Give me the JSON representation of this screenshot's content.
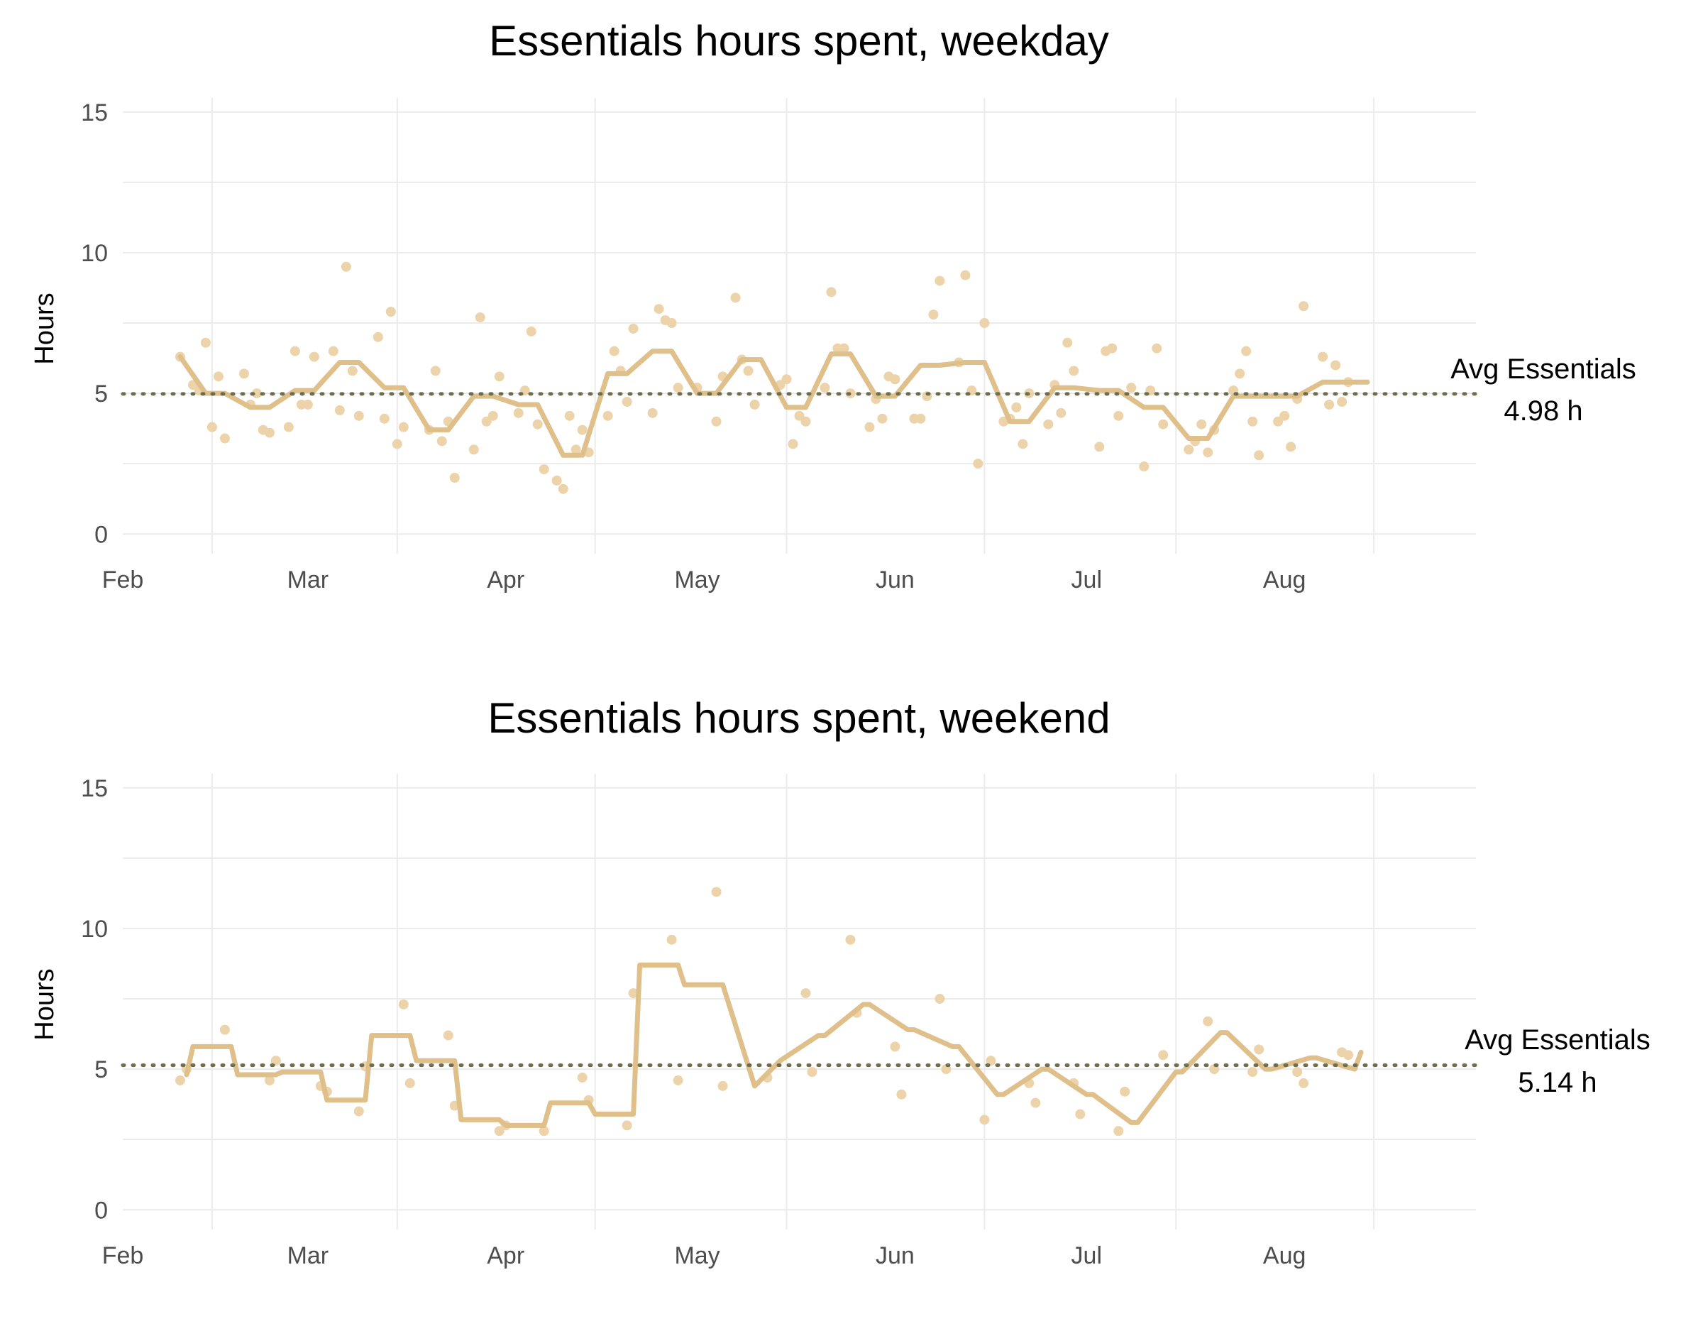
{
  "chart_data": [
    {
      "type": "line",
      "title": "Essentials hours spent, weekday",
      "ylabel": "Hours",
      "xlabel": "",
      "x_ticks": [
        "Feb",
        "Mar",
        "Apr",
        "May",
        "Jun",
        "Jul",
        "Aug"
      ],
      "y_ticks": [
        "0",
        "5",
        "10",
        "15"
      ],
      "ylim": [
        -0.7,
        15.5
      ],
      "xlim": [
        "2024-02-01",
        "2024-08-31"
      ],
      "grid": true,
      "avg_label": "Avg Essentials",
      "avg_value_label": "4.98 h",
      "avg_value": 4.98,
      "colors": {
        "series": "#dfbf8a",
        "points": "#ecd3aa",
        "avg_line": "#6e6e4e"
      },
      "series": [
        {
          "type": "step",
          "x": [
            "2024-02-10",
            "2024-02-14",
            "2024-02-17",
            "2024-02-21",
            "2024-02-24",
            "2024-02-28",
            "2024-03-02",
            "2024-03-06",
            "2024-03-09",
            "2024-03-13",
            "2024-03-16",
            "2024-03-20",
            "2024-03-23",
            "2024-03-27",
            "2024-03-30",
            "2024-04-03",
            "2024-04-06",
            "2024-04-10",
            "2024-04-13",
            "2024-04-17",
            "2024-04-20",
            "2024-04-24",
            "2024-04-27",
            "2024-05-01",
            "2024-05-04",
            "2024-05-08",
            "2024-05-11",
            "2024-05-15",
            "2024-05-18",
            "2024-05-22",
            "2024-05-25",
            "2024-05-29",
            "2024-06-01",
            "2024-06-05",
            "2024-06-08",
            "2024-06-12",
            "2024-06-15",
            "2024-06-19",
            "2024-06-22",
            "2024-06-26",
            "2024-06-29",
            "2024-07-03",
            "2024-07-06",
            "2024-07-10",
            "2024-07-13",
            "2024-07-17",
            "2024-07-20",
            "2024-07-24",
            "2024-07-27",
            "2024-07-31",
            "2024-08-03",
            "2024-08-07",
            "2024-08-10",
            "2024-08-14"
          ],
          "values": [
            6.3,
            5.0,
            5.0,
            4.5,
            4.5,
            5.1,
            5.1,
            6.1,
            6.1,
            5.2,
            5.2,
            3.7,
            3.7,
            4.9,
            4.9,
            4.6,
            4.6,
            2.8,
            2.8,
            5.7,
            5.7,
            6.5,
            6.5,
            5.0,
            5.0,
            6.2,
            6.2,
            4.5,
            4.5,
            6.4,
            6.4,
            4.9,
            4.9,
            6.0,
            6.0,
            6.1,
            6.1,
            4.0,
            4.0,
            5.2,
            5.2,
            5.1,
            5.1,
            4.5,
            4.5,
            3.4,
            3.4,
            4.9,
            4.9,
            4.9,
            4.9,
            5.4,
            5.4,
            5.4
          ]
        }
      ],
      "points": [
        {
          "x": "2024-02-10",
          "y": 6.3
        },
        {
          "x": "2024-02-12",
          "y": 5.3
        },
        {
          "x": "2024-02-13",
          "y": 5.1
        },
        {
          "x": "2024-02-14",
          "y": 6.8
        },
        {
          "x": "2024-02-15",
          "y": 3.8
        },
        {
          "x": "2024-02-16",
          "y": 5.6
        },
        {
          "x": "2024-02-17",
          "y": 3.4
        },
        {
          "x": "2024-02-20",
          "y": 5.7
        },
        {
          "x": "2024-02-21",
          "y": 4.6
        },
        {
          "x": "2024-02-22",
          "y": 5.0
        },
        {
          "x": "2024-02-23",
          "y": 3.7
        },
        {
          "x": "2024-02-24",
          "y": 3.6
        },
        {
          "x": "2024-02-27",
          "y": 3.8
        },
        {
          "x": "2024-02-28",
          "y": 6.5
        },
        {
          "x": "2024-02-29",
          "y": 4.6
        },
        {
          "x": "2024-03-01",
          "y": 4.6
        },
        {
          "x": "2024-03-02",
          "y": 6.3
        },
        {
          "x": "2024-03-05",
          "y": 6.5
        },
        {
          "x": "2024-03-06",
          "y": 4.4
        },
        {
          "x": "2024-03-07",
          "y": 9.5
        },
        {
          "x": "2024-03-08",
          "y": 5.8
        },
        {
          "x": "2024-03-09",
          "y": 4.2
        },
        {
          "x": "2024-03-12",
          "y": 7.0
        },
        {
          "x": "2024-03-13",
          "y": 4.1
        },
        {
          "x": "2024-03-14",
          "y": 7.9
        },
        {
          "x": "2024-03-15",
          "y": 3.2
        },
        {
          "x": "2024-03-16",
          "y": 3.8
        },
        {
          "x": "2024-03-20",
          "y": 3.7
        },
        {
          "x": "2024-03-21",
          "y": 5.8
        },
        {
          "x": "2024-03-22",
          "y": 3.3
        },
        {
          "x": "2024-03-23",
          "y": 4.0
        },
        {
          "x": "2024-03-24",
          "y": 2.0
        },
        {
          "x": "2024-03-27",
          "y": 3.0
        },
        {
          "x": "2024-03-28",
          "y": 7.7
        },
        {
          "x": "2024-03-29",
          "y": 4.0
        },
        {
          "x": "2024-03-30",
          "y": 4.2
        },
        {
          "x": "2024-03-31",
          "y": 5.6
        },
        {
          "x": "2024-04-03",
          "y": 4.3
        },
        {
          "x": "2024-04-04",
          "y": 5.1
        },
        {
          "x": "2024-04-05",
          "y": 7.2
        },
        {
          "x": "2024-04-06",
          "y": 3.9
        },
        {
          "x": "2024-04-07",
          "y": 2.3
        },
        {
          "x": "2024-04-09",
          "y": 1.9
        },
        {
          "x": "2024-04-10",
          "y": 1.6
        },
        {
          "x": "2024-04-11",
          "y": 4.2
        },
        {
          "x": "2024-04-12",
          "y": 3.0
        },
        {
          "x": "2024-04-13",
          "y": 3.7
        },
        {
          "x": "2024-04-14",
          "y": 2.9
        },
        {
          "x": "2024-04-17",
          "y": 4.2
        },
        {
          "x": "2024-04-18",
          "y": 6.5
        },
        {
          "x": "2024-04-19",
          "y": 5.8
        },
        {
          "x": "2024-04-20",
          "y": 4.7
        },
        {
          "x": "2024-04-21",
          "y": 7.3
        },
        {
          "x": "2024-04-24",
          "y": 4.3
        },
        {
          "x": "2024-04-25",
          "y": 8.0
        },
        {
          "x": "2024-04-26",
          "y": 7.6
        },
        {
          "x": "2024-04-27",
          "y": 7.5
        },
        {
          "x": "2024-04-28",
          "y": 5.2
        },
        {
          "x": "2024-05-01",
          "y": 5.2
        },
        {
          "x": "2024-05-04",
          "y": 4.0
        },
        {
          "x": "2024-05-05",
          "y": 5.6
        },
        {
          "x": "2024-05-07",
          "y": 8.4
        },
        {
          "x": "2024-05-08",
          "y": 6.2
        },
        {
          "x": "2024-05-09",
          "y": 5.8
        },
        {
          "x": "2024-05-10",
          "y": 4.6
        },
        {
          "x": "2024-05-14",
          "y": 5.3
        },
        {
          "x": "2024-05-15",
          "y": 5.5
        },
        {
          "x": "2024-05-16",
          "y": 3.2
        },
        {
          "x": "2024-05-17",
          "y": 4.2
        },
        {
          "x": "2024-05-18",
          "y": 4.0
        },
        {
          "x": "2024-05-21",
          "y": 5.2
        },
        {
          "x": "2024-05-22",
          "y": 8.6
        },
        {
          "x": "2024-05-23",
          "y": 6.6
        },
        {
          "x": "2024-05-24",
          "y": 6.6
        },
        {
          "x": "2024-05-25",
          "y": 5.0
        },
        {
          "x": "2024-05-28",
          "y": 3.8
        },
        {
          "x": "2024-05-29",
          "y": 4.8
        },
        {
          "x": "2024-05-30",
          "y": 4.1
        },
        {
          "x": "2024-05-31",
          "y": 5.6
        },
        {
          "x": "2024-06-01",
          "y": 5.5
        },
        {
          "x": "2024-06-04",
          "y": 4.1
        },
        {
          "x": "2024-06-05",
          "y": 4.1
        },
        {
          "x": "2024-06-06",
          "y": 4.9
        },
        {
          "x": "2024-06-07",
          "y": 7.8
        },
        {
          "x": "2024-06-08",
          "y": 9.0
        },
        {
          "x": "2024-06-11",
          "y": 6.1
        },
        {
          "x": "2024-06-12",
          "y": 9.2
        },
        {
          "x": "2024-06-13",
          "y": 5.1
        },
        {
          "x": "2024-06-14",
          "y": 2.5
        },
        {
          "x": "2024-06-15",
          "y": 7.5
        },
        {
          "x": "2024-06-18",
          "y": 4.0
        },
        {
          "x": "2024-06-19",
          "y": 4.1
        },
        {
          "x": "2024-06-20",
          "y": 4.5
        },
        {
          "x": "2024-06-21",
          "y": 3.2
        },
        {
          "x": "2024-06-22",
          "y": 5.0
        },
        {
          "x": "2024-06-25",
          "y": 3.9
        },
        {
          "x": "2024-06-26",
          "y": 5.3
        },
        {
          "x": "2024-06-27",
          "y": 4.3
        },
        {
          "x": "2024-06-28",
          "y": 6.8
        },
        {
          "x": "2024-06-29",
          "y": 5.8
        },
        {
          "x": "2024-07-03",
          "y": 3.1
        },
        {
          "x": "2024-07-04",
          "y": 6.5
        },
        {
          "x": "2024-07-05",
          "y": 6.6
        },
        {
          "x": "2024-07-06",
          "y": 4.2
        },
        {
          "x": "2024-07-08",
          "y": 5.2
        },
        {
          "x": "2024-07-10",
          "y": 2.4
        },
        {
          "x": "2024-07-11",
          "y": 5.1
        },
        {
          "x": "2024-07-12",
          "y": 6.6
        },
        {
          "x": "2024-07-13",
          "y": 3.9
        },
        {
          "x": "2024-07-17",
          "y": 3.0
        },
        {
          "x": "2024-07-18",
          "y": 3.3
        },
        {
          "x": "2024-07-19",
          "y": 3.9
        },
        {
          "x": "2024-07-20",
          "y": 2.9
        },
        {
          "x": "2024-07-21",
          "y": 3.7
        },
        {
          "x": "2024-07-24",
          "y": 5.1
        },
        {
          "x": "2024-07-25",
          "y": 5.7
        },
        {
          "x": "2024-07-26",
          "y": 6.5
        },
        {
          "x": "2024-07-27",
          "y": 4.0
        },
        {
          "x": "2024-07-28",
          "y": 2.8
        },
        {
          "x": "2024-07-31",
          "y": 4.0
        },
        {
          "x": "2024-08-01",
          "y": 4.2
        },
        {
          "x": "2024-08-02",
          "y": 3.1
        },
        {
          "x": "2024-08-03",
          "y": 4.8
        },
        {
          "x": "2024-08-04",
          "y": 8.1
        },
        {
          "x": "2024-08-07",
          "y": 6.3
        },
        {
          "x": "2024-08-08",
          "y": 4.6
        },
        {
          "x": "2024-08-09",
          "y": 6.0
        },
        {
          "x": "2024-08-10",
          "y": 4.7
        },
        {
          "x": "2024-08-11",
          "y": 5.4
        }
      ]
    },
    {
      "type": "line",
      "title": "Essentials hours spent, weekend",
      "ylabel": "Hours",
      "xlabel": "",
      "x_ticks": [
        "Feb",
        "Mar",
        "Apr",
        "May",
        "Jun",
        "Jul",
        "Aug"
      ],
      "y_ticks": [
        "0",
        "5",
        "10",
        "15"
      ],
      "ylim": [
        -0.7,
        15.5
      ],
      "xlim": [
        "2024-02-01",
        "2024-08-31"
      ],
      "grid": true,
      "avg_label": "Avg Essentials",
      "avg_value_label": "5.14 h",
      "avg_value": 5.14,
      "colors": {
        "series": "#dfbf8a",
        "points": "#ecd3aa",
        "avg_line": "#6e6e4e"
      },
      "series": [
        {
          "type": "step",
          "x": [
            "2024-02-11",
            "2024-02-12",
            "2024-02-18",
            "2024-02-19",
            "2024-02-25",
            "2024-02-26",
            "2024-03-03",
            "2024-03-04",
            "2024-03-10",
            "2024-03-11",
            "2024-03-17",
            "2024-03-18",
            "2024-03-24",
            "2024-03-25",
            "2024-03-31",
            "2024-04-01",
            "2024-04-07",
            "2024-04-08",
            "2024-04-14",
            "2024-04-15",
            "2024-04-21",
            "2024-04-22",
            "2024-04-28",
            "2024-04-29",
            "2024-05-05",
            "2024-05-10",
            "2024-05-14",
            "2024-05-20",
            "2024-05-21",
            "2024-05-27",
            "2024-05-28",
            "2024-06-03",
            "2024-06-04",
            "2024-06-10",
            "2024-06-11",
            "2024-06-17",
            "2024-06-18",
            "2024-06-24",
            "2024-06-25",
            "2024-07-01",
            "2024-07-02",
            "2024-07-08",
            "2024-07-09",
            "2024-07-15",
            "2024-07-16",
            "2024-07-22",
            "2024-07-23",
            "2024-07-29",
            "2024-07-30",
            "2024-08-05",
            "2024-08-06",
            "2024-08-12",
            "2024-08-13"
          ],
          "values": [
            4.8,
            5.8,
            5.8,
            4.8,
            4.8,
            4.9,
            4.9,
            3.9,
            3.9,
            6.2,
            6.2,
            5.3,
            5.3,
            3.2,
            3.2,
            3.0,
            3.0,
            3.8,
            3.8,
            3.4,
            3.4,
            8.7,
            8.7,
            8.0,
            8.0,
            4.4,
            5.3,
            6.2,
            6.2,
            7.3,
            7.3,
            6.4,
            6.4,
            5.8,
            5.8,
            4.1,
            4.1,
            5.0,
            5.0,
            4.1,
            4.1,
            3.1,
            3.1,
            4.9,
            4.9,
            6.3,
            6.3,
            5.0,
            5.0,
            5.4,
            5.4,
            5.0,
            5.6
          ]
        }
      ],
      "points": [
        {
          "x": "2024-02-10",
          "y": 4.6
        },
        {
          "x": "2024-02-11",
          "y": 5.0
        },
        {
          "x": "2024-02-17",
          "y": 6.4
        },
        {
          "x": "2024-02-24",
          "y": 4.6
        },
        {
          "x": "2024-02-25",
          "y": 5.3
        },
        {
          "x": "2024-03-03",
          "y": 4.4
        },
        {
          "x": "2024-03-04",
          "y": 4.2
        },
        {
          "x": "2024-03-09",
          "y": 3.5
        },
        {
          "x": "2024-03-10",
          "y": 5.1
        },
        {
          "x": "2024-03-16",
          "y": 7.3
        },
        {
          "x": "2024-03-17",
          "y": 4.5
        },
        {
          "x": "2024-03-23",
          "y": 6.2
        },
        {
          "x": "2024-03-24",
          "y": 3.7
        },
        {
          "x": "2024-03-31",
          "y": 2.8
        },
        {
          "x": "2024-04-01",
          "y": 3.0
        },
        {
          "x": "2024-04-07",
          "y": 2.8
        },
        {
          "x": "2024-04-13",
          "y": 4.7
        },
        {
          "x": "2024-04-14",
          "y": 3.9
        },
        {
          "x": "2024-04-20",
          "y": 3.0
        },
        {
          "x": "2024-04-21",
          "y": 7.7
        },
        {
          "x": "2024-04-27",
          "y": 9.6
        },
        {
          "x": "2024-04-28",
          "y": 4.6
        },
        {
          "x": "2024-05-04",
          "y": 11.3
        },
        {
          "x": "2024-05-05",
          "y": 4.4
        },
        {
          "x": "2024-05-12",
          "y": 4.7
        },
        {
          "x": "2024-05-18",
          "y": 7.7
        },
        {
          "x": "2024-05-19",
          "y": 4.9
        },
        {
          "x": "2024-05-25",
          "y": 9.6
        },
        {
          "x": "2024-05-26",
          "y": 7.0
        },
        {
          "x": "2024-06-01",
          "y": 5.8
        },
        {
          "x": "2024-06-02",
          "y": 4.1
        },
        {
          "x": "2024-06-08",
          "y": 7.5
        },
        {
          "x": "2024-06-09",
          "y": 5.0
        },
        {
          "x": "2024-06-15",
          "y": 3.2
        },
        {
          "x": "2024-06-16",
          "y": 5.3
        },
        {
          "x": "2024-06-22",
          "y": 4.5
        },
        {
          "x": "2024-06-23",
          "y": 3.8
        },
        {
          "x": "2024-06-29",
          "y": 4.5
        },
        {
          "x": "2024-06-30",
          "y": 3.4
        },
        {
          "x": "2024-07-06",
          "y": 2.8
        },
        {
          "x": "2024-07-07",
          "y": 4.2
        },
        {
          "x": "2024-07-13",
          "y": 5.5
        },
        {
          "x": "2024-07-20",
          "y": 6.7
        },
        {
          "x": "2024-07-21",
          "y": 5.0
        },
        {
          "x": "2024-07-27",
          "y": 4.9
        },
        {
          "x": "2024-07-28",
          "y": 5.7
        },
        {
          "x": "2024-08-03",
          "y": 4.9
        },
        {
          "x": "2024-08-04",
          "y": 4.5
        },
        {
          "x": "2024-08-10",
          "y": 5.6
        },
        {
          "x": "2024-08-11",
          "y": 5.5
        }
      ]
    }
  ]
}
